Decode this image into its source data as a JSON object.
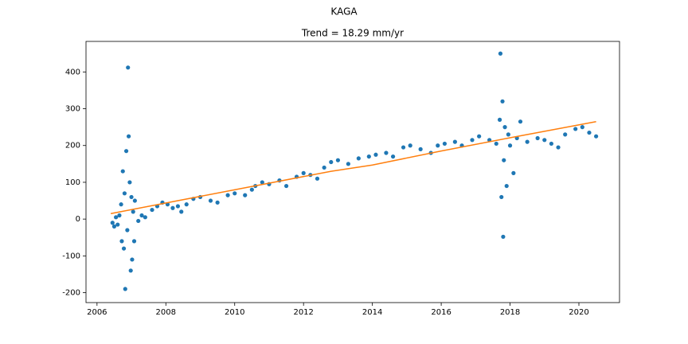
{
  "chart_data": {
    "type": "scatter",
    "title": "KAGA",
    "subtitle": "Trend = 18.29 mm/yr",
    "xlim": [
      2005.68,
      2021.18
    ],
    "ylim": [
      -227,
      483
    ],
    "xticks": [
      2006,
      2008,
      2010,
      2012,
      2014,
      2016,
      2018,
      2020
    ],
    "yticks": [
      -200,
      -100,
      0,
      100,
      200,
      300,
      400
    ],
    "series": [
      {
        "mode": "markers",
        "color": "#1f77b4",
        "x": [
          2006.45,
          2006.5,
          2006.55,
          2006.6,
          2006.65,
          2006.7,
          2006.72,
          2006.75,
          2006.78,
          2006.8,
          2006.82,
          2006.85,
          2006.88,
          2006.9,
          2006.92,
          2006.95,
          2006.98,
          2007.0,
          2007.02,
          2007.05,
          2007.08,
          2007.1,
          2007.2,
          2007.3,
          2007.4,
          2007.6,
          2007.75,
          2007.9,
          2008.05,
          2008.2,
          2008.35,
          2008.45,
          2008.6,
          2008.8,
          2009.0,
          2009.3,
          2009.5,
          2009.8,
          2010.0,
          2010.3,
          2010.5,
          2010.6,
          2010.8,
          2011.0,
          2011.3,
          2011.5,
          2011.8,
          2012.0,
          2012.2,
          2012.4,
          2012.6,
          2012.8,
          2013.0,
          2013.3,
          2013.6,
          2013.9,
          2014.1,
          2014.4,
          2014.6,
          2014.9,
          2015.1,
          2015.4,
          2015.7,
          2015.9,
          2016.1,
          2016.4,
          2016.6,
          2016.9,
          2017.1,
          2017.4,
          2017.6,
          2017.7,
          2017.72,
          2017.75,
          2017.78,
          2017.8,
          2017.82,
          2017.85,
          2017.9,
          2017.95,
          2018.0,
          2018.1,
          2018.2,
          2018.3,
          2018.5,
          2018.8,
          2019.0,
          2019.2,
          2019.4,
          2019.6,
          2019.9,
          2020.1,
          2020.3,
          2020.5
        ],
        "values": [
          -10,
          -20,
          5,
          -15,
          10,
          40,
          -60,
          130,
          -80,
          70,
          -190,
          185,
          -30,
          412,
          225,
          100,
          -140,
          60,
          -110,
          20,
          -60,
          50,
          -5,
          10,
          5,
          25,
          35,
          45,
          40,
          30,
          35,
          20,
          40,
          55,
          60,
          50,
          45,
          65,
          70,
          65,
          80,
          90,
          100,
          95,
          105,
          90,
          115,
          125,
          120,
          110,
          140,
          155,
          160,
          150,
          165,
          170,
          175,
          180,
          170,
          195,
          200,
          190,
          180,
          200,
          205,
          210,
          200,
          215,
          225,
          215,
          205,
          270,
          450,
          60,
          320,
          -48,
          160,
          250,
          90,
          230,
          200,
          125,
          220,
          265,
          210,
          220,
          215,
          205,
          195,
          230,
          245,
          250,
          235,
          225
        ]
      },
      {
        "mode": "line",
        "color": "#ff7f0e",
        "x": [
          2006.4,
          2012.8,
          2014.0,
          2016.0,
          2018.0,
          2020.5
        ],
        "values": [
          15,
          130,
          147,
          185,
          221,
          265
        ]
      }
    ]
  }
}
